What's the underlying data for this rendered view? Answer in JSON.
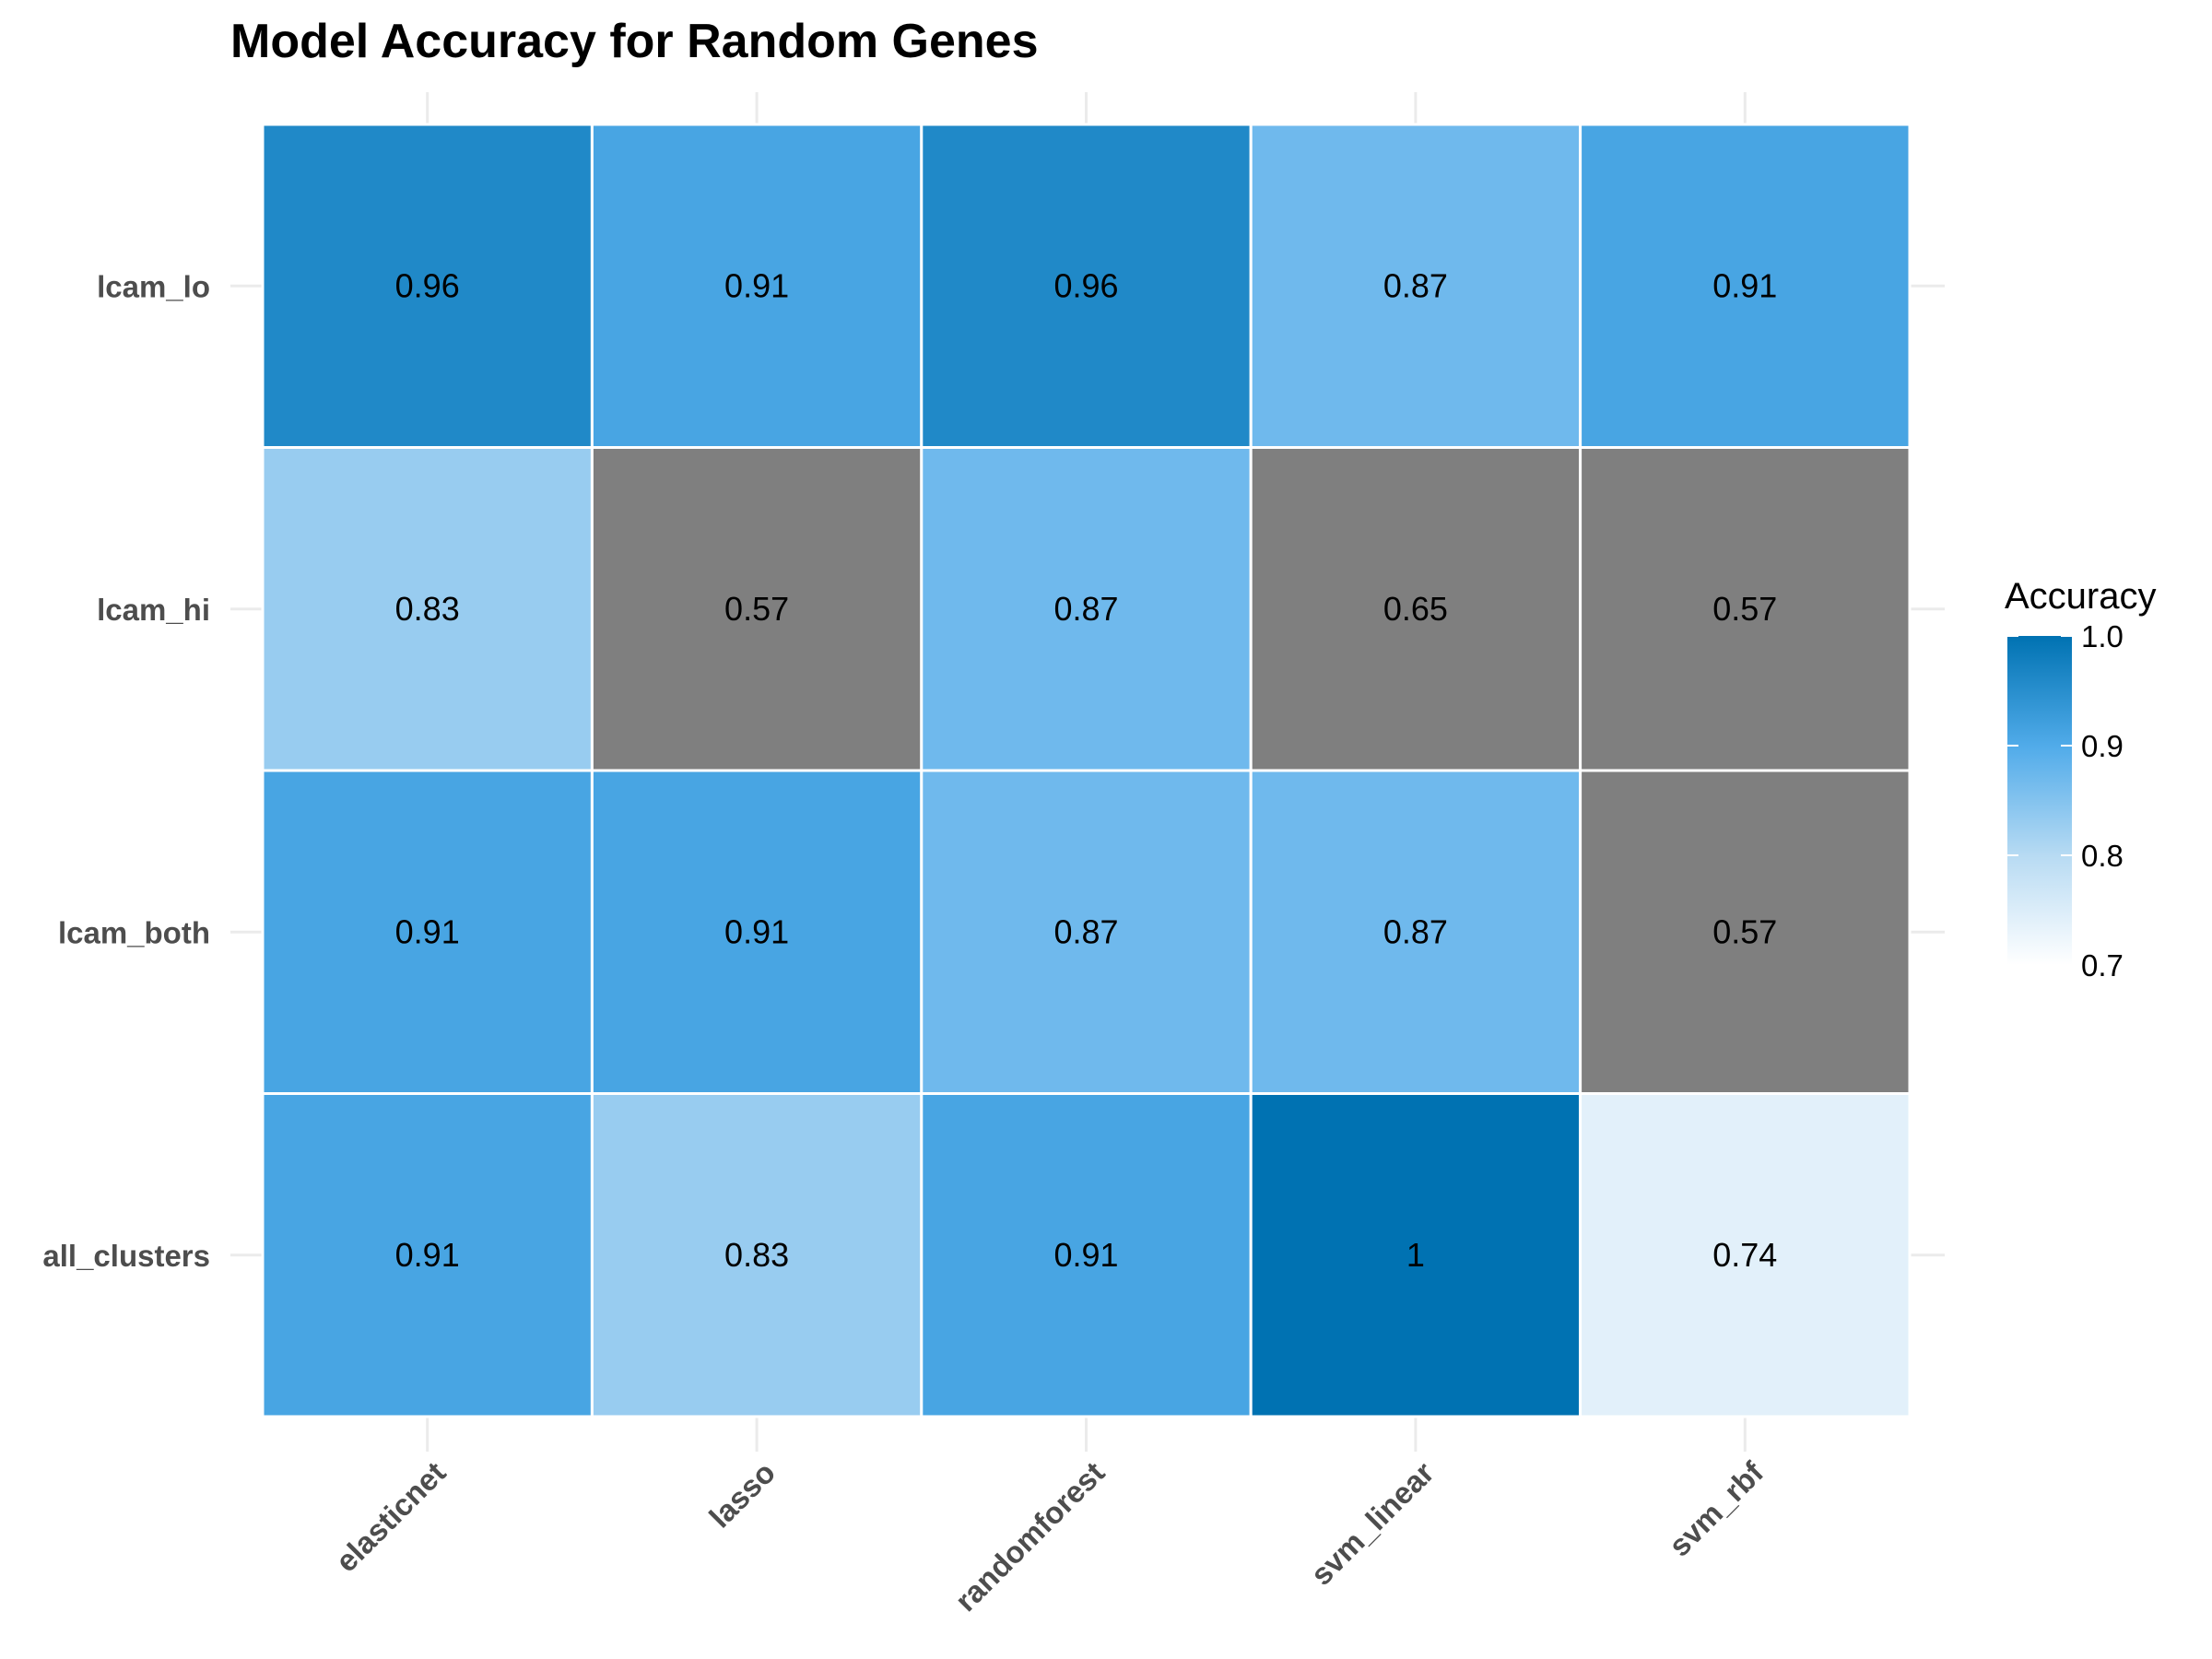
{
  "chart_data": {
    "type": "heatmap",
    "title": "Model Accuracy for Random Genes",
    "xlabel": "",
    "ylabel": "",
    "x_categories": [
      "elasticnet",
      "lasso",
      "randomforest",
      "svm_linear",
      "svm_rbf"
    ],
    "y_categories": [
      "lcam_lo",
      "lcam_hi",
      "lcam_both",
      "all_clusters"
    ],
    "values": [
      [
        0.96,
        0.91,
        0.96,
        0.87,
        0.91
      ],
      [
        0.83,
        0.57,
        0.87,
        0.65,
        0.57
      ],
      [
        0.91,
        0.91,
        0.87,
        0.87,
        0.57
      ],
      [
        0.91,
        0.83,
        0.91,
        1,
        0.74
      ]
    ],
    "colorbar": {
      "title": "Accuracy",
      "range": [
        0.7,
        1.0
      ],
      "ticks": [
        "1.0",
        "0.9",
        "0.8",
        "0.7"
      ],
      "low_color": "#ffffff",
      "high_color": "#0072b2",
      "out_of_range_color": "#7f7f7f"
    },
    "legend_position": "right",
    "grid": true
  }
}
